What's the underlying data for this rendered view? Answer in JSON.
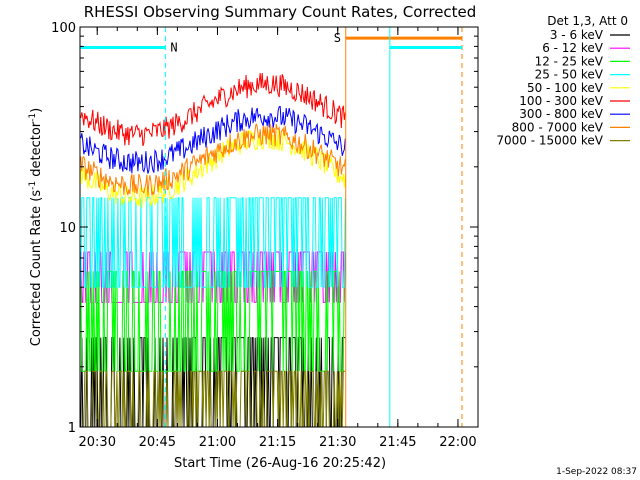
{
  "chart_data": {
    "type": "line",
    "title": "RHESSI Observing Summary Count Rates, Corrected",
    "xlabel": "Start Time (26-Aug-16 20:25:42)",
    "ylabel_main": "Corrected Count Rate (s",
    "ylabel_sup1": "-1",
    "ylabel_mid": " detector",
    "ylabel_sup2": "-1",
    "ylabel_end": ")",
    "yscale": "log",
    "ylim": [
      1,
      100
    ],
    "xlim_minutes": [
      "20:25:42",
      "22:05"
    ],
    "x_ticks": [
      "20:30",
      "20:45",
      "21:00",
      "21:15",
      "21:30",
      "21:45",
      "22:00"
    ],
    "y_ticks": [
      "1",
      "10",
      "100"
    ],
    "legend_title": "Det 1,3, Att 0",
    "legend_placement": "right",
    "timestamp": "1-Sep-2022 08:37",
    "annotations": {
      "night_label": "N",
      "saa_label": "S",
      "night_color": "#00ffff",
      "saa_color": "#ff8000",
      "night_start": "20:25:42",
      "night_end": "20:47",
      "saa_start": "21:32",
      "saa_end": "22:01",
      "night_bar_2_start": "21:43",
      "night_bar_2_end": "22:01"
    },
    "series": [
      {
        "name": "3 - 6 keV",
        "color": "#000000",
        "level_min": 1.0,
        "level_max": 2.8,
        "noise": "binary"
      },
      {
        "name": "6 - 12 keV",
        "color": "#ff00ff",
        "level_min": 4.2,
        "level_max": 7.5,
        "noise": "binary"
      },
      {
        "name": "12 - 25 keV",
        "color": "#00ff00",
        "level_min": 1.9,
        "level_max": 6.0,
        "noise": "binary"
      },
      {
        "name": "25 - 50 keV",
        "color": "#00ffff",
        "level_min": 5.0,
        "level_max": 14.0,
        "noise": "binary"
      },
      {
        "name": "50 - 100 keV",
        "color": "#ffff00",
        "level_min": 14,
        "level_max": 28
      },
      {
        "name": "100 - 300 keV",
        "color": "#ff0000",
        "level_min": 29,
        "level_max": 52
      },
      {
        "name": "300 - 800 keV",
        "color": "#0000ff",
        "level_min": 21,
        "level_max": 36
      },
      {
        "name": "800 - 7000 keV",
        "color": "#ff8000",
        "level_min": 16,
        "level_max": 29
      },
      {
        "name": "7000 - 15000 keV",
        "color": "#808000",
        "level_min": 1.0,
        "level_max": 1.9,
        "noise": "binary"
      }
    ]
  }
}
